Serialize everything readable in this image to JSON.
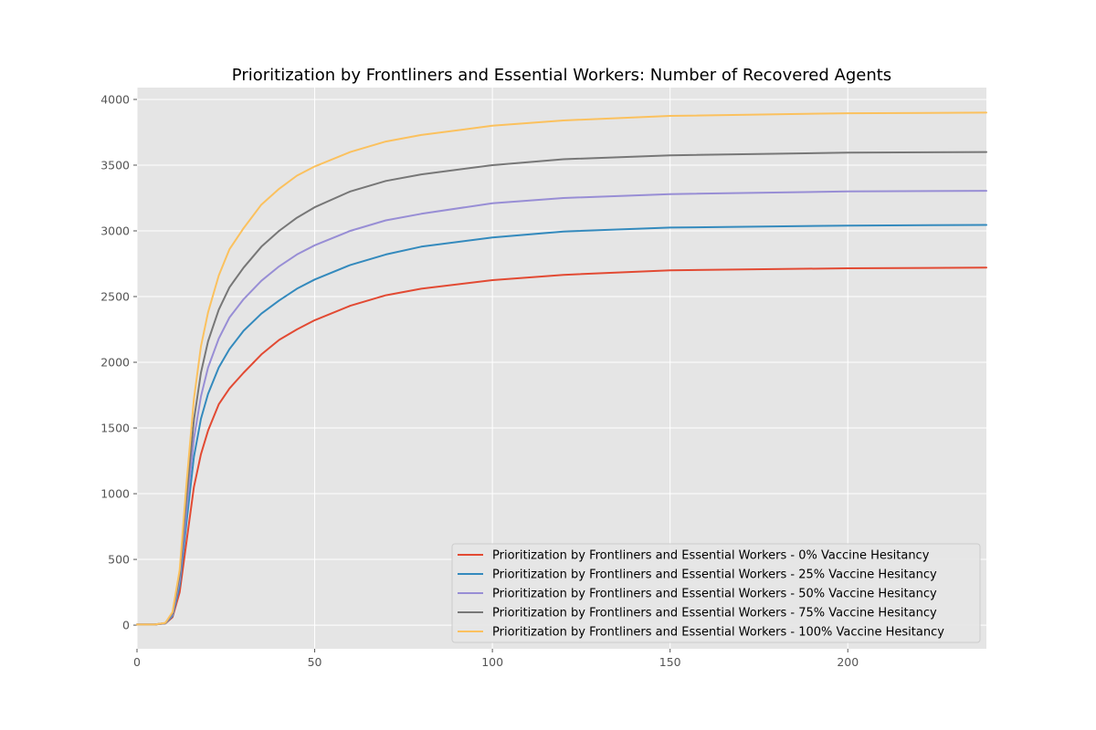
{
  "chart_data": {
    "type": "line",
    "title": "Prioritization by Frontliners and Essential Workers: Number of Recovered Agents",
    "xlabel": "",
    "ylabel": "",
    "xlim": [
      0,
      239
    ],
    "ylim": [
      -180,
      4090
    ],
    "xticks": [
      0,
      50,
      100,
      150,
      200
    ],
    "yticks": [
      0,
      500,
      1000,
      1500,
      2000,
      2500,
      3000,
      3500,
      4000
    ],
    "grid": true,
    "legend_position": "lower-right",
    "x": [
      0,
      5,
      8,
      10,
      12,
      14,
      16,
      18,
      20,
      23,
      26,
      30,
      35,
      40,
      45,
      50,
      60,
      70,
      80,
      100,
      120,
      150,
      200,
      239
    ],
    "series": [
      {
        "name": "Prioritization by Frontliners and Essential Workers - 0% Vaccine Hesitancy",
        "color": "#E24A33",
        "values": [
          5,
          5,
          12,
          60,
          250,
          650,
          1050,
          1300,
          1480,
          1680,
          1800,
          1920,
          2060,
          2170,
          2250,
          2320,
          2430,
          2510,
          2560,
          2625,
          2665,
          2700,
          2715,
          2720
        ]
      },
      {
        "name": "Prioritization by Frontliners and Essential Workers - 25% Vaccine Hesitancy",
        "color": "#348ABD",
        "values": [
          5,
          5,
          14,
          70,
          300,
          800,
          1280,
          1570,
          1760,
          1960,
          2100,
          2240,
          2370,
          2470,
          2560,
          2630,
          2740,
          2820,
          2880,
          2950,
          2995,
          3025,
          3040,
          3045
        ]
      },
      {
        "name": "Prioritization by Frontliners and Essential Workers - 50% Vaccine Hesitancy",
        "color": "#988ED5",
        "values": [
          5,
          5,
          15,
          80,
          340,
          900,
          1420,
          1740,
          1960,
          2180,
          2340,
          2480,
          2620,
          2730,
          2820,
          2890,
          3000,
          3080,
          3130,
          3210,
          3250,
          3280,
          3300,
          3305
        ]
      },
      {
        "name": "Prioritization by Frontliners and Essential Workers - 75% Vaccine Hesitancy",
        "color": "#777777",
        "values": [
          5,
          5,
          16,
          90,
          380,
          1000,
          1560,
          1920,
          2160,
          2400,
          2570,
          2720,
          2880,
          3000,
          3100,
          3180,
          3300,
          3380,
          3430,
          3500,
          3545,
          3575,
          3595,
          3600
        ]
      },
      {
        "name": "Prioritization by Frontliners and Essential Workers - 100% Vaccine Hesitancy",
        "color": "#FBC15E",
        "values": [
          5,
          5,
          17,
          100,
          420,
          1100,
          1720,
          2120,
          2380,
          2660,
          2860,
          3020,
          3200,
          3320,
          3420,
          3490,
          3600,
          3680,
          3730,
          3800,
          3840,
          3875,
          3895,
          3900
        ]
      }
    ]
  }
}
